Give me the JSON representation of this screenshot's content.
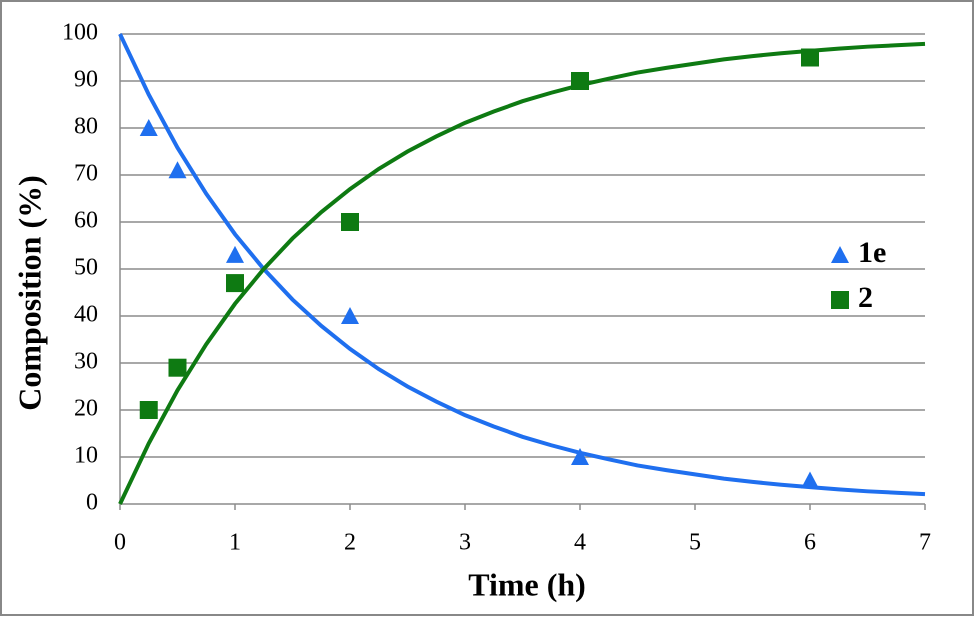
{
  "chart_data": {
    "type": "scatter",
    "xlabel": "Time (h)",
    "ylabel": "Composition (%)",
    "xlim": [
      0,
      7
    ],
    "xticks": [
      0,
      1,
      2,
      3,
      4,
      5,
      6,
      7
    ],
    "ylim": [
      0,
      100
    ],
    "yticks": [
      0,
      10,
      20,
      30,
      40,
      50,
      60,
      70,
      80,
      90,
      100
    ],
    "grid": true,
    "legend": "right",
    "series": [
      {
        "name": "1e",
        "color": "#1f6fef",
        "marker": "triangle",
        "x": [
          0.25,
          0.5,
          1,
          2,
          4,
          6
        ],
        "values": [
          80,
          71,
          53,
          40,
          10,
          5
        ],
        "fit": {
          "x": [
            0,
            0.25,
            0.5,
            0.75,
            1,
            1.25,
            1.5,
            1.75,
            2,
            2.25,
            2.5,
            2.75,
            3,
            3.25,
            3.5,
            3.75,
            4,
            4.25,
            4.5,
            4.75,
            5,
            5.25,
            5.5,
            5.75,
            6,
            6.25,
            6.5,
            6.75,
            7
          ],
          "values": [
            100,
            87.1,
            75.8,
            66.0,
            57.4,
            50.0,
            43.5,
            37.9,
            33.0,
            28.7,
            25.0,
            21.8,
            18.9,
            16.5,
            14.3,
            12.5,
            10.9,
            9.5,
            8.2,
            7.2,
            6.3,
            5.4,
            4.7,
            4.1,
            3.6,
            3.1,
            2.7,
            2.4,
            2.1
          ]
        }
      },
      {
        "name": "2",
        "color": "#0e7a12",
        "marker": "square",
        "x": [
          0.25,
          0.5,
          1,
          2,
          4,
          6
        ],
        "values": [
          20,
          29,
          47,
          60,
          90,
          95
        ],
        "fit": {
          "x": [
            0,
            0.25,
            0.5,
            0.75,
            1,
            1.25,
            1.5,
            1.75,
            2,
            2.25,
            2.5,
            2.75,
            3,
            3.25,
            3.5,
            3.75,
            4,
            4.25,
            4.5,
            4.75,
            5,
            5.25,
            5.5,
            5.75,
            6,
            6.25,
            6.5,
            6.75,
            7
          ],
          "values": [
            0,
            12.9,
            24.2,
            34.0,
            42.6,
            50.0,
            56.5,
            62.1,
            67.0,
            71.3,
            75.0,
            78.2,
            81.1,
            83.5,
            85.7,
            87.5,
            89.1,
            90.5,
            91.8,
            92.8,
            93.7,
            94.6,
            95.3,
            95.9,
            96.4,
            96.9,
            97.3,
            97.6,
            97.9
          ]
        }
      }
    ]
  }
}
